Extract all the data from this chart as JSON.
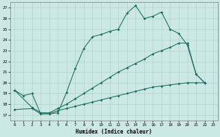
{
  "title": "",
  "xlabel": "Humidex (Indice chaleur)",
  "xlim": [
    -0.5,
    23.5
  ],
  "ylim": [
    16.5,
    27.5
  ],
  "yticks": [
    17,
    18,
    19,
    20,
    21,
    22,
    23,
    24,
    25,
    26,
    27
  ],
  "xticks": [
    0,
    1,
    2,
    3,
    4,
    5,
    6,
    7,
    8,
    9,
    10,
    11,
    12,
    13,
    14,
    15,
    16,
    17,
    18,
    19,
    20,
    21,
    22,
    23
  ],
  "bg_color": "#cce8e4",
  "grid_color": "#b0d0cc",
  "line_color": "#1a6e62",
  "line1_x": [
    0,
    1,
    2,
    3,
    4,
    5,
    6,
    7,
    8,
    9,
    10,
    11,
    12,
    13,
    14,
    15,
    16,
    17,
    18,
    19,
    20,
    21,
    22
  ],
  "line1_y": [
    19.3,
    18.8,
    19.0,
    17.1,
    17.1,
    17.2,
    19.1,
    21.3,
    23.2,
    24.3,
    24.5,
    24.8,
    25.0,
    26.5,
    27.2,
    26.0,
    26.2,
    26.6,
    25.0,
    24.6,
    23.5,
    20.8,
    20.0
  ],
  "line2_x": [
    0,
    2,
    3,
    4,
    5,
    6,
    7,
    8,
    9,
    10,
    11,
    12,
    13,
    14,
    15,
    16,
    17,
    18,
    19,
    20,
    21,
    22
  ],
  "line2_y": [
    19.3,
    17.7,
    17.2,
    17.2,
    17.6,
    18.0,
    18.5,
    19.0,
    19.5,
    20.0,
    20.5,
    21.0,
    21.4,
    21.8,
    22.2,
    22.7,
    23.0,
    23.3,
    23.7,
    23.7,
    20.8,
    20.0
  ],
  "line3_x": [
    0,
    2,
    3,
    4,
    5,
    6,
    7,
    8,
    9,
    10,
    11,
    12,
    13,
    14,
    15,
    16,
    17,
    18,
    19,
    20,
    21,
    22
  ],
  "line3_y": [
    17.5,
    17.6,
    17.1,
    17.1,
    17.4,
    17.6,
    17.8,
    18.0,
    18.2,
    18.4,
    18.6,
    18.8,
    19.0,
    19.2,
    19.4,
    19.6,
    19.7,
    19.8,
    19.9,
    20.0,
    20.0,
    20.0
  ]
}
